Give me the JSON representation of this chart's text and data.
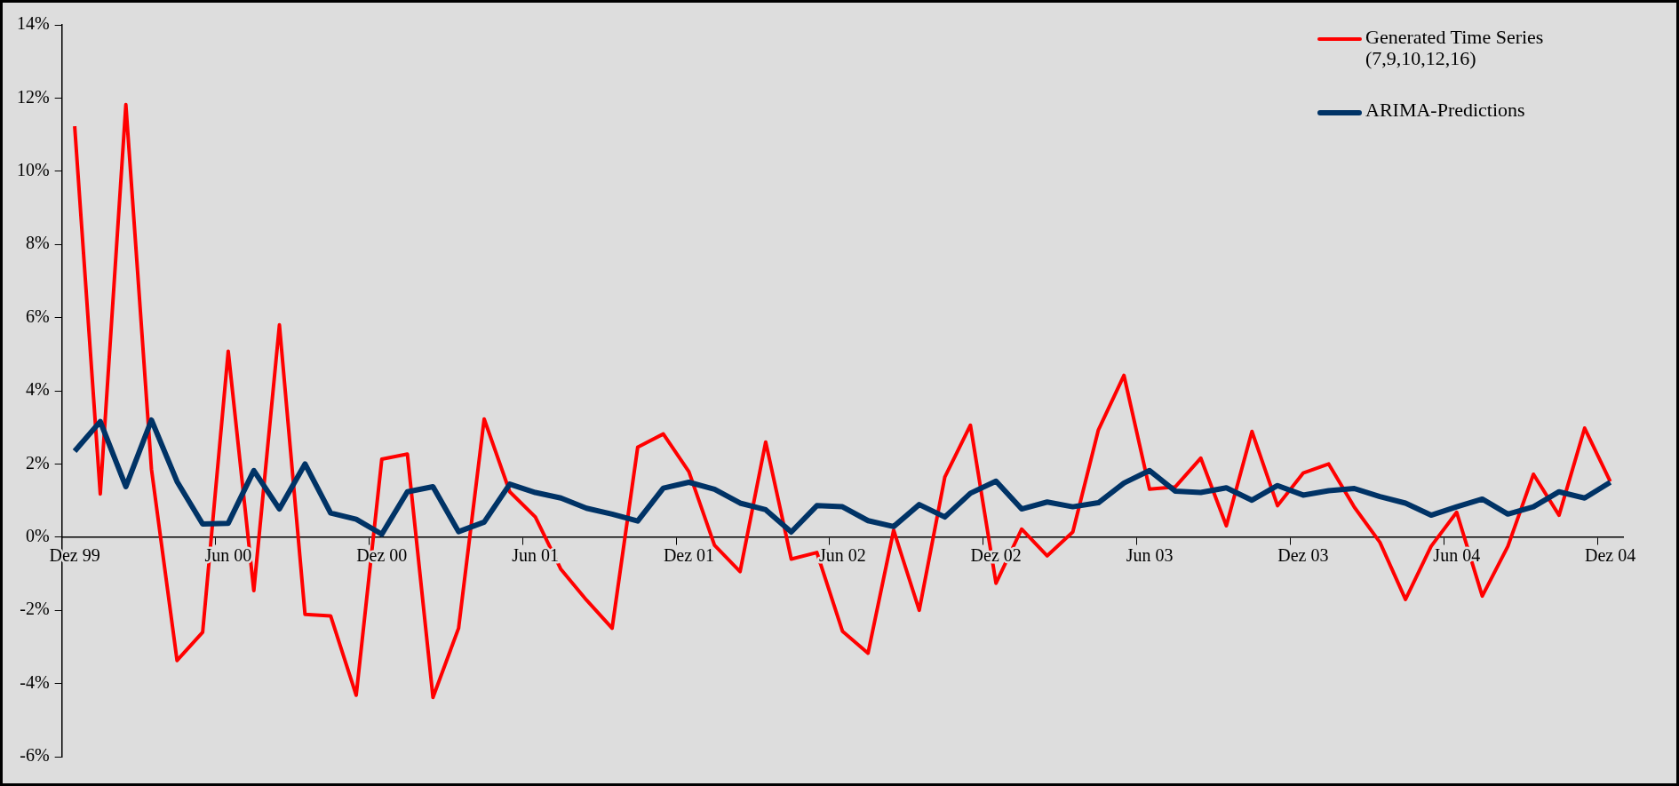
{
  "chart_data": {
    "type": "line",
    "categories": [
      "Dez 99",
      null,
      null,
      null,
      null,
      null,
      "Jun 00",
      null,
      null,
      null,
      null,
      null,
      "Dez 00",
      null,
      null,
      null,
      null,
      null,
      "Jun 01",
      null,
      null,
      null,
      null,
      null,
      "Dez 01",
      null,
      null,
      null,
      null,
      null,
      "Jun 02",
      null,
      null,
      null,
      null,
      null,
      "Dez 02",
      null,
      null,
      null,
      null,
      null,
      "Jun 03",
      null,
      null,
      null,
      null,
      null,
      "Dez 03",
      null,
      null,
      null,
      null,
      null,
      "Jun 04",
      null,
      null,
      null,
      null,
      null,
      "Dez 04"
    ],
    "series": [
      {
        "name": "Generated Time Series (7,9,10,12,16)",
        "color": "#ff0000",
        "values": [
          11.23,
          1.18,
          11.82,
          1.86,
          -3.37,
          -2.6,
          5.08,
          -1.46,
          5.8,
          -2.11,
          -2.15,
          -4.32,
          2.13,
          2.27,
          -4.38,
          -2.49,
          3.23,
          1.24,
          0.55,
          -0.88,
          -1.72,
          -2.49,
          2.46,
          2.82,
          1.79,
          -0.22,
          -0.94,
          2.6,
          -0.6,
          -0.42,
          -2.57,
          -3.17,
          0.19,
          -2.0,
          1.64,
          3.06,
          -1.26,
          0.22,
          -0.51,
          0.14,
          2.93,
          4.42,
          1.31,
          1.37,
          2.16,
          0.31,
          2.89,
          0.86,
          1.75,
          2.0,
          0.82,
          -0.14,
          -1.7,
          -0.25,
          0.68,
          -1.61,
          -0.25,
          1.72,
          0.6,
          2.98,
          1.52
        ]
      },
      {
        "name": "ARIMA-Predictions",
        "color": "#003366",
        "values": [
          2.35,
          3.16,
          1.38,
          3.2,
          1.52,
          0.36,
          0.38,
          1.82,
          0.77,
          2.0,
          0.66,
          0.49,
          0.08,
          1.24,
          1.38,
          0.15,
          0.41,
          1.45,
          1.22,
          1.07,
          0.79,
          0.63,
          0.44,
          1.34,
          1.5,
          1.31,
          0.93,
          0.75,
          0.14,
          0.86,
          0.83,
          0.45,
          0.29,
          0.89,
          0.55,
          1.2,
          1.53,
          0.77,
          0.96,
          0.83,
          0.94,
          1.48,
          1.82,
          1.26,
          1.22,
          1.35,
          1.01,
          1.41,
          1.15,
          1.27,
          1.33,
          1.11,
          0.93,
          0.6,
          0.83,
          1.04,
          0.63,
          0.83,
          1.24,
          1.07,
          1.5
        ]
      }
    ],
    "ylim": [
      -6,
      14
    ],
    "yticks": [
      {
        "value": -6,
        "label": "-6%"
      },
      {
        "value": -4,
        "label": "-4%"
      },
      {
        "value": -2,
        "label": "-2%"
      },
      {
        "value": 0,
        "label": "0%"
      },
      {
        "value": 2,
        "label": "2%"
      },
      {
        "value": 4,
        "label": "4%"
      },
      {
        "value": 6,
        "label": "6%"
      },
      {
        "value": 8,
        "label": "8%"
      },
      {
        "value": 10,
        "label": "10%"
      },
      {
        "value": 12,
        "label": "12%"
      },
      {
        "value": 14,
        "label": "14%"
      }
    ],
    "grid": false,
    "legend": "top right",
    "marker": "none",
    "line_style": "solid"
  }
}
